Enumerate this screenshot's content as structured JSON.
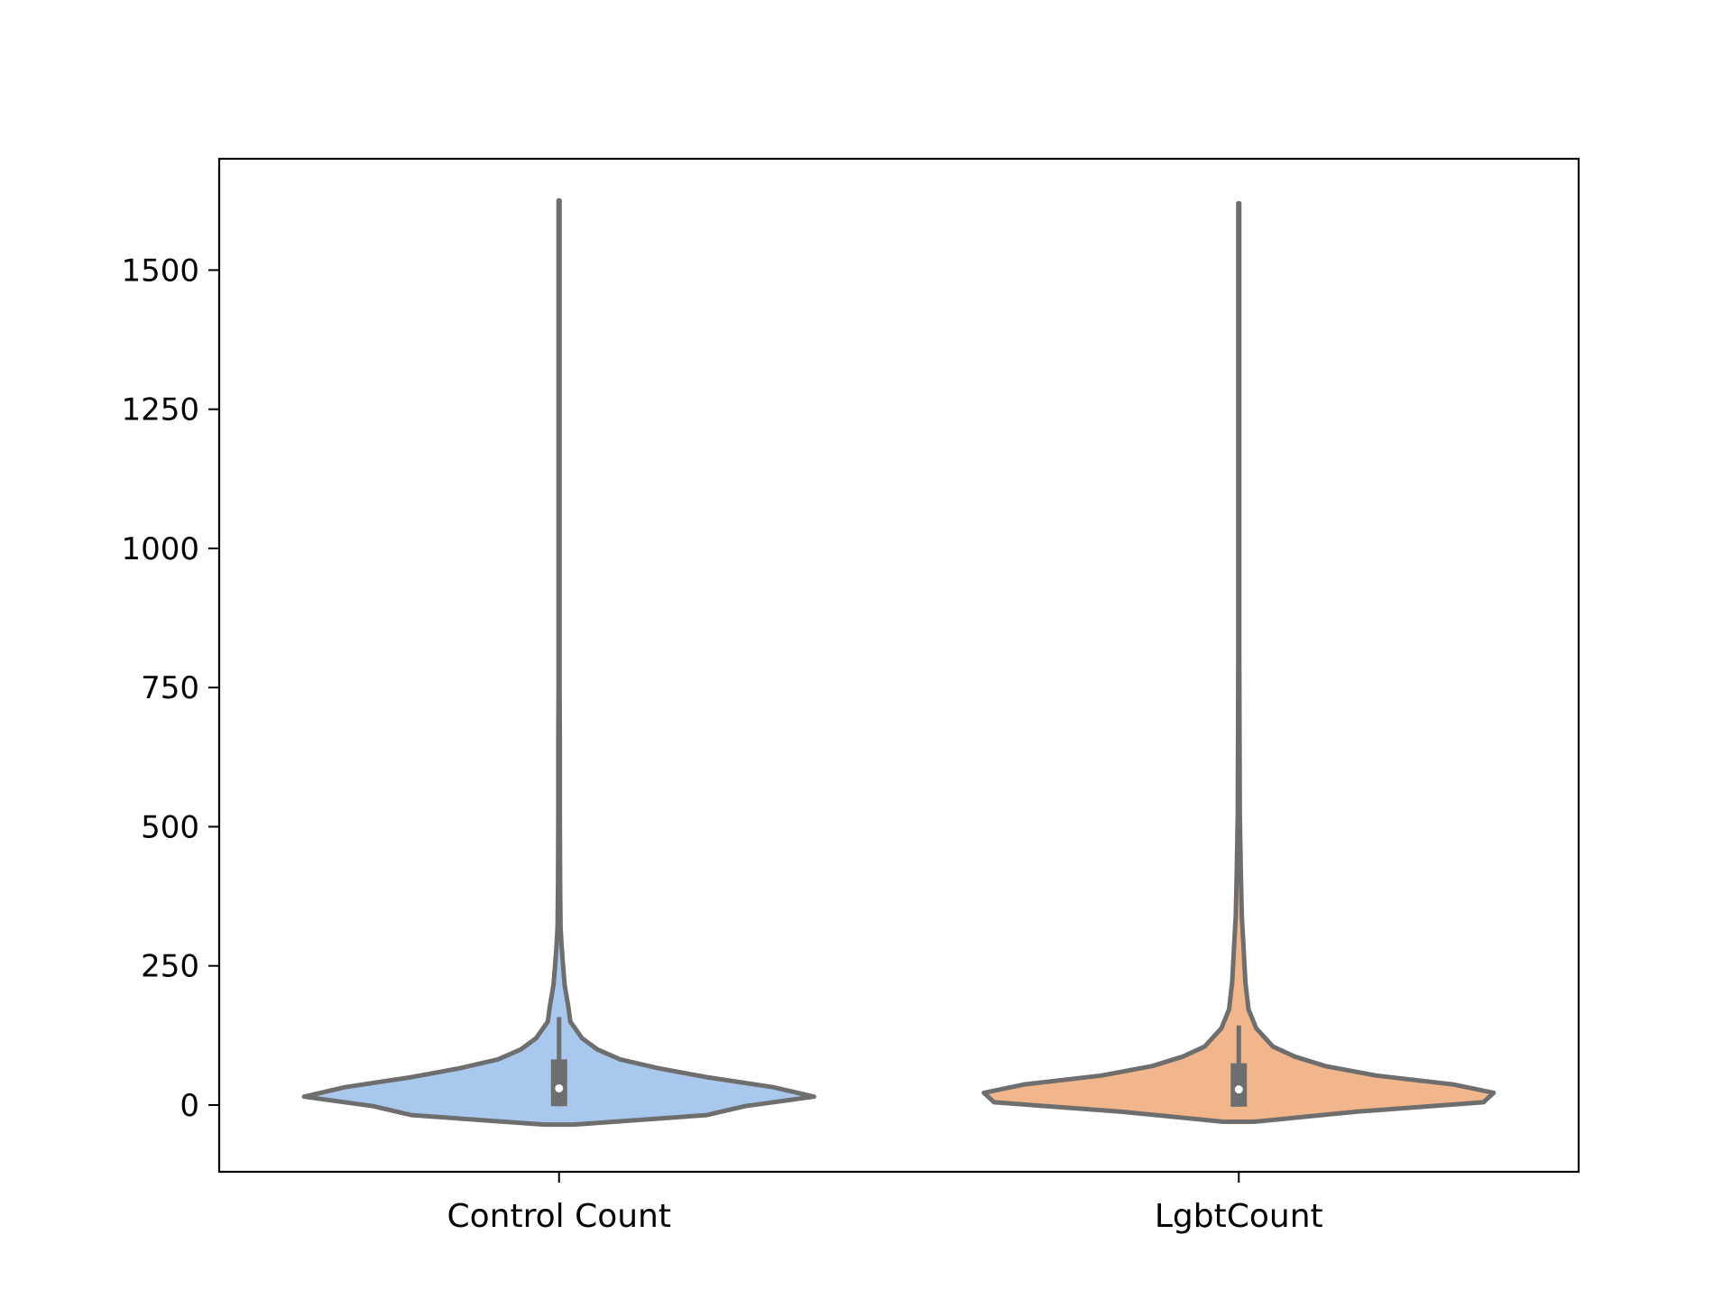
{
  "chart_data": {
    "type": "violin",
    "title": "",
    "xlabel": "",
    "ylabel": "",
    "ylim": [
      -120,
      1700
    ],
    "yticks": [
      0,
      250,
      500,
      750,
      1000,
      1250,
      1500
    ],
    "ytick_labels": [
      "0",
      "250",
      "500",
      "750",
      "1000",
      "1250",
      "1500"
    ],
    "categories": [
      "Control Count",
      "LgbtCount"
    ],
    "grid": false,
    "legend": "none",
    "edge_color": "#6e6e6e",
    "series": [
      {
        "category": "Control Count",
        "color": "#a8c8ee",
        "min": -35,
        "max": 1625,
        "q1": -2,
        "median": 30,
        "q3": 82,
        "whisker_low": -2,
        "whisker_high": 158,
        "density_profile": [
          [
            -35,
            0.03
          ],
          [
            -18,
            0.29
          ],
          [
            -2,
            0.365
          ],
          [
            15,
            0.5
          ],
          [
            32,
            0.42
          ],
          [
            50,
            0.29
          ],
          [
            66,
            0.195
          ],
          [
            82,
            0.12
          ],
          [
            100,
            0.075
          ],
          [
            120,
            0.045
          ],
          [
            150,
            0.022
          ],
          [
            178,
            0.018
          ],
          [
            215,
            0.011
          ],
          [
            248,
            0.008
          ],
          [
            285,
            0.005
          ],
          [
            320,
            0.003
          ],
          [
            400,
            0.002
          ],
          [
            520,
            0.0015
          ],
          [
            650,
            0.0015
          ],
          [
            760,
            0.001
          ],
          [
            1000,
            0.001
          ],
          [
            1300,
            0.001
          ],
          [
            1625,
            0.001
          ]
        ]
      },
      {
        "category": "LgbtCount",
        "color": "#f2b68c",
        "min": -30,
        "max": 1620,
        "q1": -3,
        "median": 28,
        "q3": 75,
        "whisker_low": -3,
        "whisker_high": 143,
        "density_profile": [
          [
            -30,
            0.03
          ],
          [
            -12,
            0.23
          ],
          [
            5,
            0.48
          ],
          [
            22,
            0.5
          ],
          [
            37,
            0.42
          ],
          [
            53,
            0.27
          ],
          [
            70,
            0.17
          ],
          [
            87,
            0.11
          ],
          [
            105,
            0.067
          ],
          [
            138,
            0.034
          ],
          [
            172,
            0.019
          ],
          [
            220,
            0.013
          ],
          [
            290,
            0.009
          ],
          [
            340,
            0.006
          ],
          [
            420,
            0.004
          ],
          [
            520,
            0.002
          ],
          [
            800,
            0.001
          ],
          [
            1200,
            0.001
          ],
          [
            1620,
            0.001
          ]
        ]
      }
    ]
  }
}
